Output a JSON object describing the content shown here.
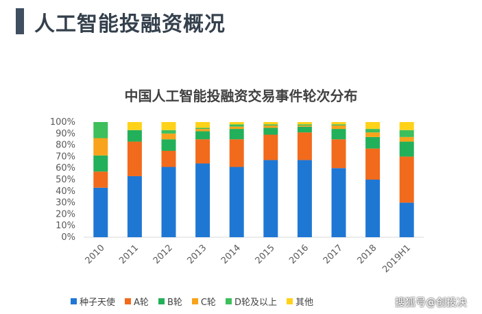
{
  "header": {
    "title": "人工智能投融资概况"
  },
  "watermark": "搜狐号@创投决",
  "colors": {
    "seed_angel": "#1f77d4",
    "round_a": "#f26a1b",
    "round_b": "#23b05a",
    "round_c": "#f8a31b",
    "round_d_plus": "#3dbf5c",
    "other": "#ffd21a",
    "header_bar": "#3f4f60"
  },
  "chart_data": {
    "type": "bar",
    "stacked": true,
    "title": "中国人工智能投融资交易事件轮次分布",
    "categories": [
      "2010",
      "2011",
      "2012",
      "2013",
      "2014",
      "2015",
      "2016",
      "2017",
      "2018",
      "2019H1"
    ],
    "y_ticks": [
      "0%",
      "10%",
      "20%",
      "30%",
      "40%",
      "50%",
      "60%",
      "70%",
      "80%",
      "90%",
      "100%"
    ],
    "ylim": [
      0,
      100
    ],
    "grid": false,
    "legend_position": "bottom",
    "series": [
      {
        "name": "种子天使",
        "color_key": "seed_angel",
        "values": [
          43,
          53,
          61,
          64,
          61,
          67,
          67,
          60,
          50,
          30
        ]
      },
      {
        "name": "A轮",
        "color_key": "round_a",
        "values": [
          14,
          30,
          14,
          21,
          24,
          22,
          24,
          25,
          27,
          40
        ]
      },
      {
        "name": "B轮",
        "color_key": "round_b",
        "values": [
          14,
          10,
          10,
          7,
          9,
          6,
          5,
          9,
          10,
          13
        ]
      },
      {
        "name": "C轮",
        "color_key": "round_c",
        "values": [
          15,
          0,
          5,
          2,
          2,
          2,
          1,
          3,
          4,
          4
        ]
      },
      {
        "name": "D轮及以上",
        "color_key": "round_d_plus",
        "values": [
          14,
          0,
          3,
          1,
          2,
          1,
          1,
          1,
          3,
          6
        ]
      },
      {
        "name": "其他",
        "color_key": "other",
        "values": [
          0,
          7,
          7,
          5,
          2,
          2,
          2,
          2,
          6,
          7
        ]
      }
    ]
  }
}
